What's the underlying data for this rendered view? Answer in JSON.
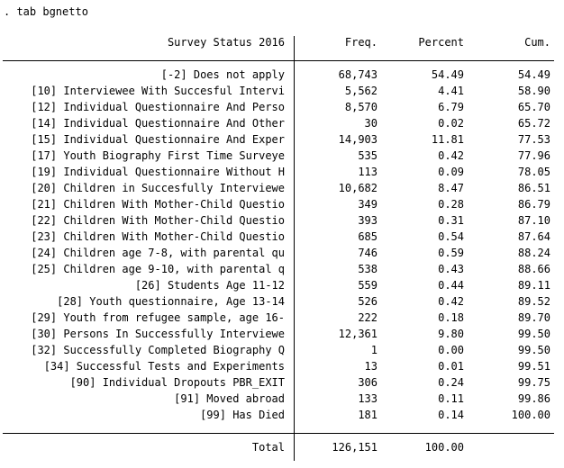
{
  "command": ". tab bgnetto",
  "header": {
    "label": "Survey Status 2016",
    "freq": "Freq.",
    "percent": "Percent",
    "cum": "Cum."
  },
  "rows": [
    {
      "label": "[-2] Does not apply",
      "freq": "68,743",
      "percent": "54.49",
      "cum": "54.49"
    },
    {
      "label": "[10] Interviewee With Succesful Intervi",
      "freq": "5,562",
      "percent": "4.41",
      "cum": "58.90"
    },
    {
      "label": "[12] Individual Questionnaire And Perso",
      "freq": "8,570",
      "percent": "6.79",
      "cum": "65.70"
    },
    {
      "label": "[14] Individual Questionnaire And Other",
      "freq": "30",
      "percent": "0.02",
      "cum": "65.72"
    },
    {
      "label": "[15] Individual Questionnaire And Exper",
      "freq": "14,903",
      "percent": "11.81",
      "cum": "77.53"
    },
    {
      "label": "[17] Youth Biography First Time Surveye",
      "freq": "535",
      "percent": "0.42",
      "cum": "77.96"
    },
    {
      "label": "[19] Individual Questionnaire Without H",
      "freq": "113",
      "percent": "0.09",
      "cum": "78.05"
    },
    {
      "label": "[20] Children in Succesfully Interviewe",
      "freq": "10,682",
      "percent": "8.47",
      "cum": "86.51"
    },
    {
      "label": "[21] Children With Mother-Child Questio",
      "freq": "349",
      "percent": "0.28",
      "cum": "86.79"
    },
    {
      "label": "[22] Children With Mother-Child Questio",
      "freq": "393",
      "percent": "0.31",
      "cum": "87.10"
    },
    {
      "label": "[23] Children With Mother-Child Questio",
      "freq": "685",
      "percent": "0.54",
      "cum": "87.64"
    },
    {
      "label": "[24] Children age 7-8, with parental qu",
      "freq": "746",
      "percent": "0.59",
      "cum": "88.24"
    },
    {
      "label": "[25] Children age 9-10, with parental q",
      "freq": "538",
      "percent": "0.43",
      "cum": "88.66"
    },
    {
      "label": "[26] Students Age 11-12",
      "freq": "559",
      "percent": "0.44",
      "cum": "89.11"
    },
    {
      "label": "[28] Youth questionnaire, Age 13-14",
      "freq": "526",
      "percent": "0.42",
      "cum": "89.52"
    },
    {
      "label": "[29] Youth from refugee sample, age 16-",
      "freq": "222",
      "percent": "0.18",
      "cum": "89.70"
    },
    {
      "label": "[30] Persons In Successfully Interviewe",
      "freq": "12,361",
      "percent": "9.80",
      "cum": "99.50"
    },
    {
      "label": "[32] Successfully Completed Biography Q",
      "freq": "1",
      "percent": "0.00",
      "cum": "99.50"
    },
    {
      "label": "[34] Successful Tests and Experiments",
      "freq": "13",
      "percent": "0.01",
      "cum": "99.51"
    },
    {
      "label": "[90] Individual Dropouts PBR_EXIT",
      "freq": "306",
      "percent": "0.24",
      "cum": "99.75"
    },
    {
      "label": "[91] Moved abroad",
      "freq": "133",
      "percent": "0.11",
      "cum": "99.86"
    },
    {
      "label": "[99] Has Died",
      "freq": "181",
      "percent": "0.14",
      "cum": "100.00"
    }
  ],
  "total": {
    "label": "Total",
    "freq": "126,151",
    "percent": "100.00"
  }
}
